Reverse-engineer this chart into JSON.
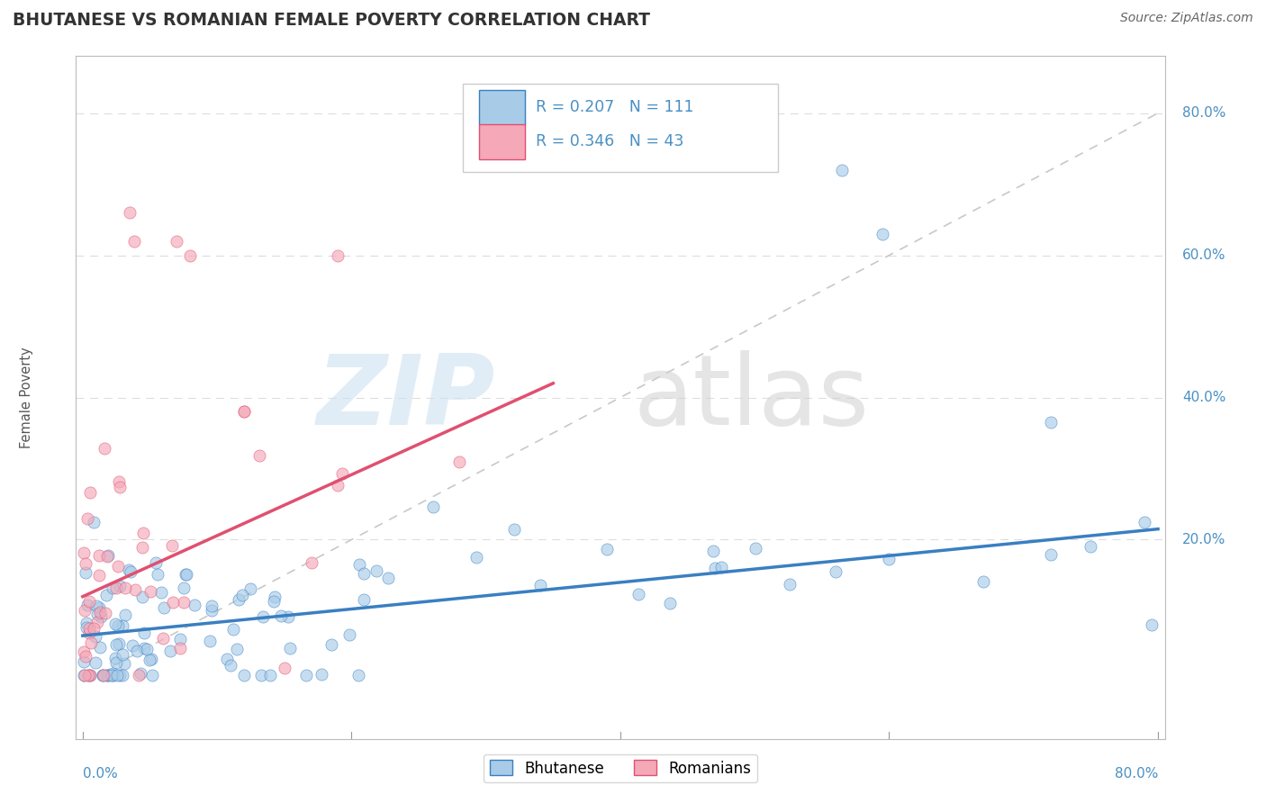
{
  "title": "BHUTANESE VS ROMANIAN FEMALE POVERTY CORRELATION CHART",
  "source": "Source: ZipAtlas.com",
  "ylabel": "Female Poverty",
  "legend_blue_label": "Bhutanese",
  "legend_pink_label": "Romanians",
  "blue_scatter_color": "#a8cce8",
  "pink_scatter_color": "#f4a8b8",
  "trend_blue": "#3a7fc1",
  "trend_pink": "#e05070",
  "diag_color": "#cccccc",
  "grid_color": "#dddddd",
  "blue_R": 0.207,
  "blue_N": 111,
  "pink_R": 0.346,
  "pink_N": 43,
  "axis_label_color": "#4a90c4",
  "title_color": "#333333",
  "source_color": "#666666",
  "ylabel_color": "#555555",
  "xlim": [
    0.0,
    0.8
  ],
  "ylim": [
    -0.08,
    0.88
  ],
  "yticks": [
    0.0,
    0.2,
    0.4,
    0.6,
    0.8
  ],
  "ytick_labels": [
    "",
    "20.0%",
    "40.0%",
    "60.0%",
    "80.0%"
  ],
  "xtick_labels_left": "0.0%",
  "xtick_labels_right": "80.0%"
}
